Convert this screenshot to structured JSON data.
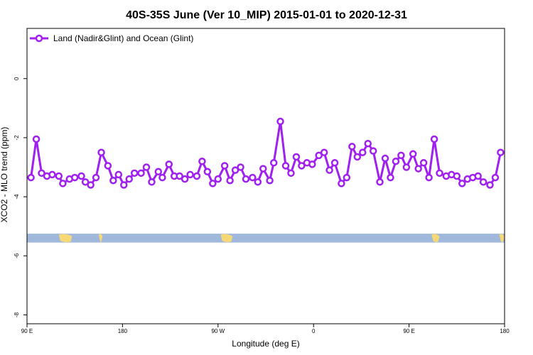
{
  "chart_data": {
    "type": "line",
    "title": "40S-35S June (Ver 10_MIP)   2015-01-01 to 2020-12-31",
    "xlabel": "Longitude (deg E)",
    "ylabel": "XCO2 - MLO trend (ppm)",
    "xlim": [
      90,
      450
    ],
    "ylim": [
      -8.3,
      1.7
    ],
    "x_tick_values": [
      90,
      162,
      234,
      306,
      378,
      450
    ],
    "x_tick_labels": [
      "90 E",
      "180",
      "90 W",
      "0",
      "90 E",
      "180"
    ],
    "y_tick_values": [
      0,
      -2,
      -4,
      -6,
      -8
    ],
    "y_tick_labels": [
      "0",
      "-2",
      "-4",
      "-6",
      "-8"
    ],
    "legend_position": "top-left",
    "series": [
      {
        "name": "Land (Nadir&Glint) and Ocean (Glint)",
        "color": "#a020f0",
        "x": [
          93,
          97,
          101,
          105,
          109,
          114,
          117,
          122,
          126,
          131,
          134,
          138,
          142,
          146,
          151,
          155,
          159,
          163,
          167,
          171,
          176,
          180,
          184,
          189,
          192,
          197,
          201,
          205,
          209,
          213,
          218,
          222,
          226,
          230,
          234,
          239,
          243,
          247,
          251,
          255,
          260,
          264,
          268,
          273,
          276,
          281,
          285,
          289,
          293,
          297,
          301,
          305,
          310,
          314,
          318,
          322,
          327,
          331,
          335,
          339,
          343,
          347,
          351,
          356,
          360,
          364,
          368,
          372,
          376,
          381,
          385,
          389,
          393,
          397,
          401,
          406,
          410,
          414,
          418,
          422,
          426,
          430,
          434,
          439,
          443,
          447
        ],
        "y": [
          -3.35,
          -2.05,
          -3.2,
          -3.3,
          -3.25,
          -3.3,
          -3.55,
          -3.4,
          -3.35,
          -3.3,
          -3.5,
          -3.6,
          -3.35,
          -2.5,
          -2.95,
          -3.45,
          -3.25,
          -3.6,
          -3.4,
          -3.2,
          -3.2,
          -3.0,
          -3.5,
          -3.15,
          -3.35,
          -2.9,
          -3.3,
          -3.3,
          -3.4,
          -3.25,
          -3.3,
          -2.8,
          -3.15,
          -3.55,
          -3.4,
          -2.95,
          -3.45,
          -3.1,
          -3.0,
          -3.4,
          -3.35,
          -3.5,
          -3.05,
          -3.45,
          -2.85,
          -1.45,
          -2.95,
          -3.2,
          -2.65,
          -2.95,
          -2.85,
          -2.9,
          -2.6,
          -2.5,
          -3.1,
          -2.85,
          -3.55,
          -3.35,
          -2.3,
          -2.65,
          -2.5,
          -2.2,
          -2.45,
          -3.5,
          -2.7,
          -3.35,
          -2.8,
          -2.6,
          -3.0,
          -2.55,
          -3.05,
          -2.85,
          -3.35,
          -2.05,
          -3.2,
          -3.3,
          -3.25,
          -3.3,
          -3.55,
          -3.4,
          -3.35,
          -3.3,
          -3.5,
          -3.6,
          -3.35,
          -2.5
        ]
      }
    ],
    "map_strip": {
      "y_range": [
        -5.55,
        -5.25
      ],
      "ocean_color": "#9fb8dc",
      "land_color": "#f7d877"
    }
  }
}
